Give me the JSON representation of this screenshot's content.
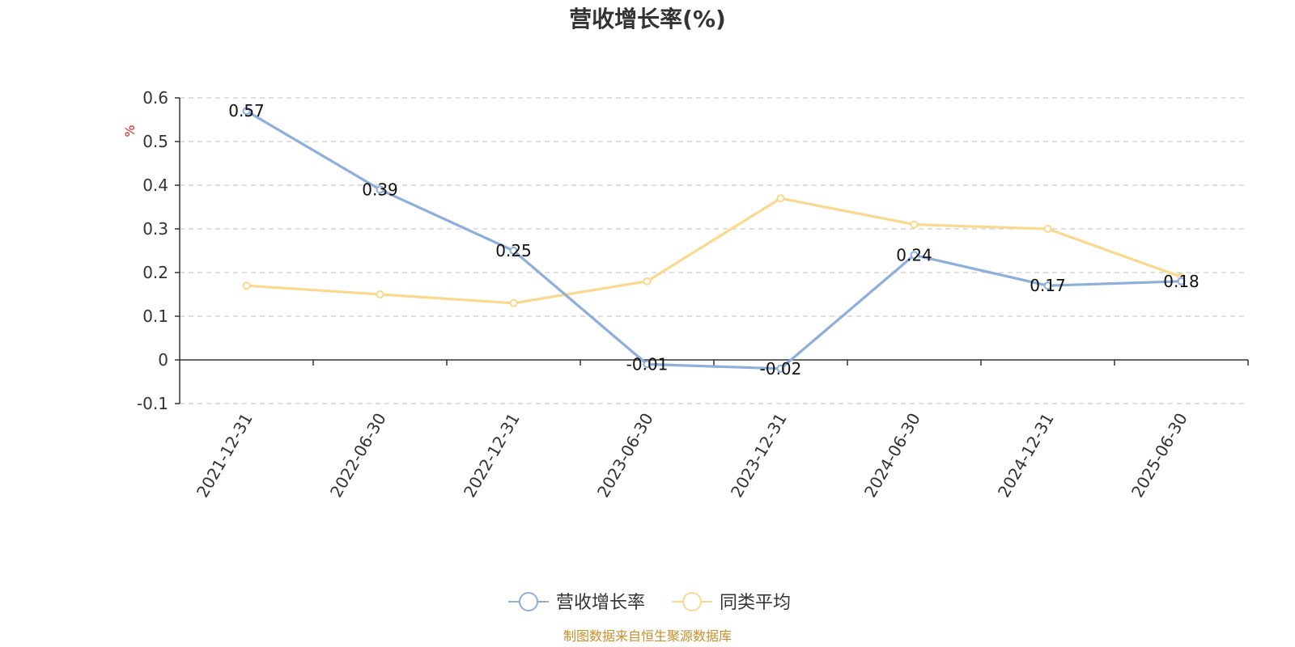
{
  "chart_data": {
    "type": "line",
    "title": "营收增长率(%)",
    "ylabel": "%",
    "categories": [
      "2021-12-31",
      "2022-06-30",
      "2022-12-31",
      "2023-06-30",
      "2023-12-31",
      "2024-06-30",
      "2024-12-31",
      "2025-06-30"
    ],
    "yticks": [
      "0.6",
      "0.5",
      "0.4",
      "0.3",
      "0.2",
      "0.1",
      "0",
      "-0.1"
    ],
    "ylim": [
      -0.1,
      0.6
    ],
    "grid": true,
    "legend_position": "bottom-center",
    "series": [
      {
        "name": "营收增长率",
        "color": "#8eaedb",
        "values": [
          0.57,
          0.39,
          0.25,
          -0.01,
          -0.02,
          0.24,
          0.17,
          0.18
        ],
        "labels": [
          "0.57",
          "0.39",
          "0.25",
          "-0.01",
          "-0.02",
          "0.24",
          "0.17",
          "0.18"
        ]
      },
      {
        "name": "同类平均",
        "color": "#fad98f",
        "values": [
          0.17,
          0.15,
          0.13,
          0.18,
          0.37,
          0.31,
          0.3,
          0.19
        ]
      }
    ],
    "source": "制图数据来自恒生聚源数据库",
    "unit_color": "#e02020",
    "source_color": "#c8902a"
  }
}
